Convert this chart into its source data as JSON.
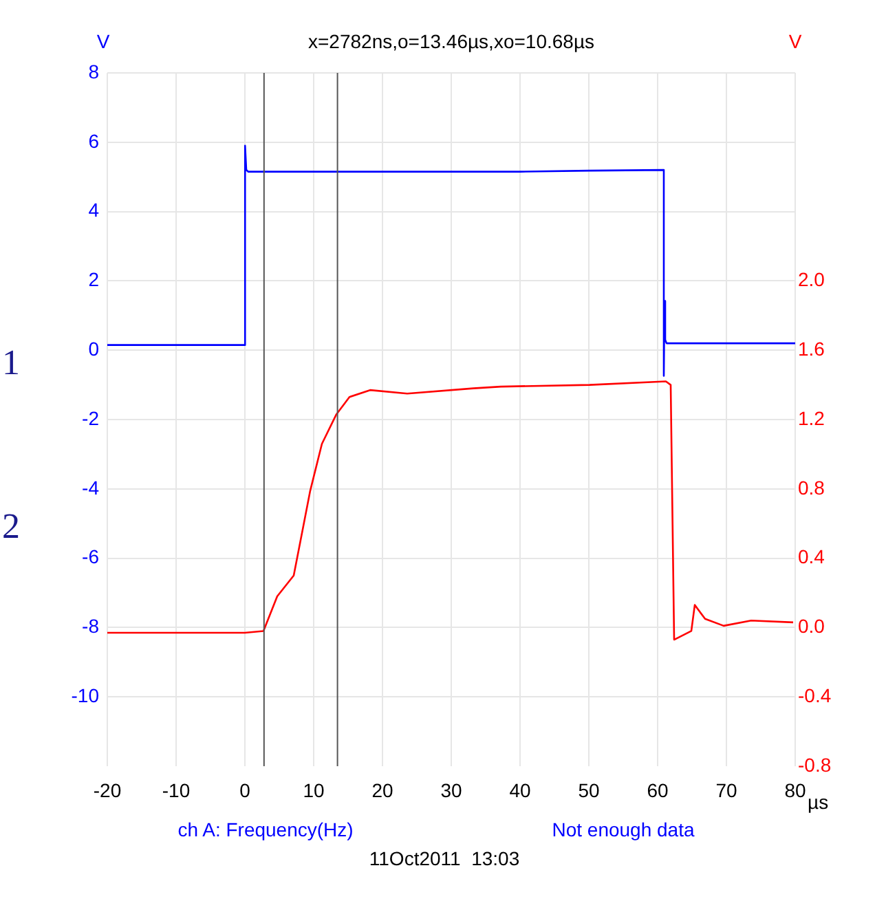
{
  "chart_data": {
    "type": "line",
    "title": "x=2782ns,o=13.46µs,xo=10.68µs",
    "xlabel": "µs",
    "ylabel": "V",
    "y2label": "V",
    "annotations": [
      "ch A: Frequency(Hz)",
      "Not enough data",
      "11Oct2011  13:03",
      "1",
      "2"
    ],
    "series": [
      {
        "color": "#0000ff",
        "x": [
          -20,
          -10,
          0,
          0.0,
          0.05,
          0.2,
          0.5,
          10,
          20,
          30,
          40,
          50,
          60.9,
          60.9,
          61.0,
          61.1,
          61.3,
          62,
          70,
          80
        ],
        "values": [
          0.15,
          0.15,
          0.15,
          0.2,
          5.9,
          5.2,
          5.15,
          5.15,
          5.15,
          5.15,
          5.15,
          5.18,
          5.2,
          -0.74,
          1.42,
          0.3,
          0.2,
          0.2,
          0.2,
          0.2
        ]
      },
      {
        "color": "#ff0000",
        "axis": "y2",
        "x": [
          -20,
          -10,
          0,
          2.7,
          4.7,
          7.1,
          9.5,
          11.2,
          13.3,
          15.2,
          18.2,
          23.6,
          33.2,
          37.2,
          50.1,
          61.2,
          61.9,
          62.4,
          64.9,
          65.4,
          66.9,
          69.6,
          73.6,
          79.7
        ],
        "values": [
          -0.03,
          -0.03,
          -0.03,
          -0.02,
          0.18,
          0.3,
          0.79,
          1.06,
          1.23,
          1.33,
          1.37,
          1.35,
          1.38,
          1.39,
          1.4,
          1.42,
          1.4,
          -0.07,
          -0.02,
          0.13,
          0.05,
          0.01,
          0.04,
          0.03
        ]
      }
    ],
    "xlim": [
      -20,
      80
    ],
    "xticks": [
      -20,
      -10,
      0,
      10,
      20,
      30,
      40,
      50,
      60,
      70,
      80
    ],
    "ylim": [
      -12,
      8
    ],
    "yticks": [
      -10,
      -8,
      -6,
      -4,
      -2,
      0,
      2,
      4,
      6,
      8
    ],
    "y2lim": [
      -0.8,
      3.2
    ],
    "y2ticks": [
      -0.8,
      -0.4,
      {
        "value": 0,
        "label": "0.0"
      },
      0.4,
      0.8,
      1.2,
      1.6,
      {
        "value": 2,
        "label": "2.0"
      }
    ],
    "ref_lines": [
      {
        "axis": "x",
        "value": 2.782,
        "color": "#555555"
      },
      {
        "axis": "x",
        "value": 13.46,
        "color": "#555555"
      }
    ],
    "grid": true,
    "legend": false,
    "marker": "none",
    "line_style": "solid"
  }
}
